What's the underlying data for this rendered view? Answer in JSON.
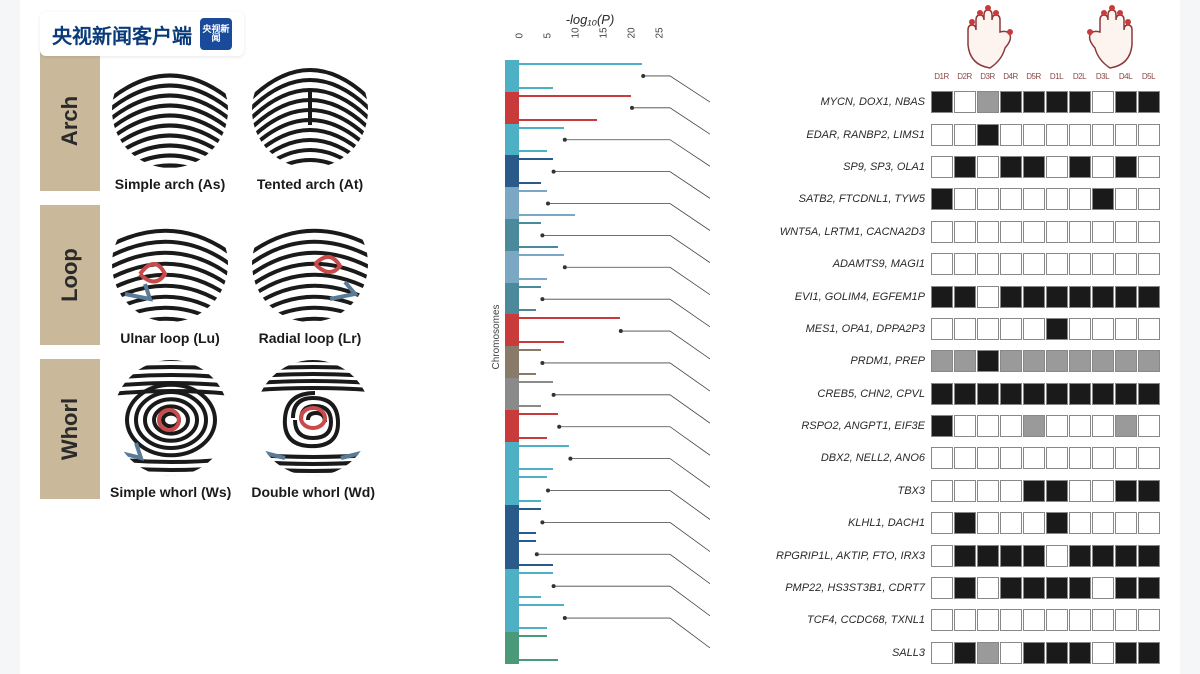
{
  "watermark": {
    "text": "央视新闻客户端",
    "logo_text": "央视新闻"
  },
  "fingerprint_categories": [
    {
      "name": "Arch",
      "bg_color": "#c9b99a",
      "patterns": [
        {
          "label": "Simple arch (As)",
          "type": "simple_arch"
        },
        {
          "label": "Tented arch (At)",
          "type": "tented_arch"
        }
      ]
    },
    {
      "name": "Loop",
      "bg_color": "#c9b99a",
      "patterns": [
        {
          "label": "Ulnar loop (Lu)",
          "type": "ulnar_loop"
        },
        {
          "label": "Radial loop (Lr)",
          "type": "radial_loop"
        }
      ]
    },
    {
      "name": "Whorl",
      "bg_color": "#c9b99a",
      "patterns": [
        {
          "label": "Simple whorl (Ws)",
          "type": "simple_whorl"
        },
        {
          "label": "Double whorl (Wd)",
          "type": "double_whorl"
        }
      ]
    }
  ],
  "manhattan": {
    "title": "-log₁₀(P)",
    "ylabel": "Chromosomes",
    "xticks": [
      "0",
      "5",
      "10",
      "15",
      "20",
      "25"
    ],
    "xmax": 25,
    "chromosomes": [
      {
        "color": "#4db0c4",
        "peak": 22,
        "peak2": 6
      },
      {
        "color": "#c93a3a",
        "peak": 20,
        "peak2": 14
      },
      {
        "color": "#4db0c4",
        "peak": 8,
        "peak2": 5
      },
      {
        "color": "#2a5a8a",
        "peak": 6,
        "peak2": 4
      },
      {
        "color": "#7aa8c4",
        "peak": 5,
        "peak2": 10
      },
      {
        "color": "#4a8a9a",
        "peak": 4,
        "peak2": 7
      },
      {
        "color": "#7aa8c4",
        "peak": 8,
        "peak2": 5
      },
      {
        "color": "#4a8a9a",
        "peak": 4,
        "peak2": 3
      },
      {
        "color": "#c93a3a",
        "peak": 18,
        "peak2": 8
      },
      {
        "color": "#8a7a6a",
        "peak": 4,
        "peak2": 3
      },
      {
        "color": "#8a8a8a",
        "peak": 6,
        "peak2": 4
      },
      {
        "color": "#c93a3a",
        "peak": 7,
        "peak2": 5
      },
      {
        "color": "#4db0c4",
        "peak": 9,
        "peak2": 6
      },
      {
        "color": "#4db0c4",
        "peak": 5,
        "peak2": 4
      },
      {
        "color": "#2a5a8a",
        "peak": 4,
        "peak2": 3
      },
      {
        "color": "#2a5a8a",
        "peak": 3,
        "peak2": 6
      },
      {
        "color": "#4db0c4",
        "peak": 6,
        "peak2": 4
      },
      {
        "color": "#4db0c4",
        "peak": 8,
        "peak2": 5
      },
      {
        "color": "#4a9a7a",
        "peak": 5,
        "peak2": 7
      }
    ]
  },
  "heatmap_columns": [
    "D1R",
    "D2R",
    "D3R",
    "D4R",
    "D5R",
    "D1L",
    "D2L",
    "D3L",
    "D4L",
    "D5L"
  ],
  "genes": [
    {
      "label": "MYCN, DOX1, NBAS",
      "cells": [
        2,
        0,
        1,
        2,
        2,
        2,
        2,
        0,
        2,
        2
      ]
    },
    {
      "label": "EDAR, RANBP2, LIMS1",
      "cells": [
        0,
        0,
        2,
        0,
        0,
        0,
        0,
        0,
        0,
        0
      ]
    },
    {
      "label": "SP9, SP3, OLA1",
      "cells": [
        0,
        2,
        0,
        2,
        2,
        0,
        2,
        0,
        2,
        0
      ]
    },
    {
      "label": "SATB2, FTCDNL1, TYW5",
      "cells": [
        2,
        0,
        0,
        0,
        0,
        0,
        0,
        2,
        0,
        0
      ]
    },
    {
      "label": "WNT5A, LRTM1, CACNA2D3",
      "cells": [
        0,
        0,
        0,
        0,
        0,
        0,
        0,
        0,
        0,
        0
      ]
    },
    {
      "label": "ADAMTS9, MAGI1",
      "cells": [
        0,
        0,
        0,
        0,
        0,
        0,
        0,
        0,
        0,
        0
      ]
    },
    {
      "label": "EVI1, GOLIM4, EGFEM1P",
      "cells": [
        2,
        2,
        0,
        2,
        2,
        2,
        2,
        2,
        2,
        2
      ]
    },
    {
      "label": "MES1, OPA1, DPPA2P3",
      "cells": [
        0,
        0,
        0,
        0,
        0,
        2,
        0,
        0,
        0,
        0
      ]
    },
    {
      "label": "PRDM1, PREP",
      "cells": [
        1,
        1,
        2,
        1,
        1,
        1,
        1,
        1,
        1,
        1
      ]
    },
    {
      "label": "CREB5, CHN2, CPVL",
      "cells": [
        2,
        2,
        2,
        2,
        2,
        2,
        2,
        2,
        2,
        2
      ]
    },
    {
      "label": "RSPO2, ANGPT1, EIF3E",
      "cells": [
        2,
        0,
        0,
        0,
        1,
        0,
        0,
        0,
        1,
        0
      ]
    },
    {
      "label": "DBX2, NELL2, ANO6",
      "cells": [
        0,
        0,
        0,
        0,
        0,
        0,
        0,
        0,
        0,
        0
      ]
    },
    {
      "label": "TBX3",
      "cells": [
        0,
        0,
        0,
        0,
        2,
        2,
        0,
        0,
        2,
        2
      ]
    },
    {
      "label": "KLHL1, DACH1",
      "cells": [
        0,
        2,
        0,
        0,
        0,
        2,
        0,
        0,
        0,
        0
      ]
    },
    {
      "label": "RPGRIP1L, AKTIP, FTO, IRX3",
      "cells": [
        0,
        2,
        2,
        2,
        2,
        0,
        2,
        2,
        2,
        2
      ]
    },
    {
      "label": "PMP22, HS3ST3B1, CDRT7",
      "cells": [
        0,
        2,
        0,
        2,
        2,
        2,
        2,
        0,
        2,
        2
      ]
    },
    {
      "label": "TCF4, CCDC68, TXNL1",
      "cells": [
        0,
        0,
        0,
        0,
        0,
        0,
        0,
        0,
        0,
        0
      ]
    },
    {
      "label": "SALL3",
      "cells": [
        0,
        2,
        1,
        0,
        2,
        2,
        2,
        0,
        2,
        2
      ]
    }
  ],
  "heatmap_palette": {
    "0": "#ffffff",
    "1": "#9a9a9a",
    "2": "#1a1a1a"
  }
}
